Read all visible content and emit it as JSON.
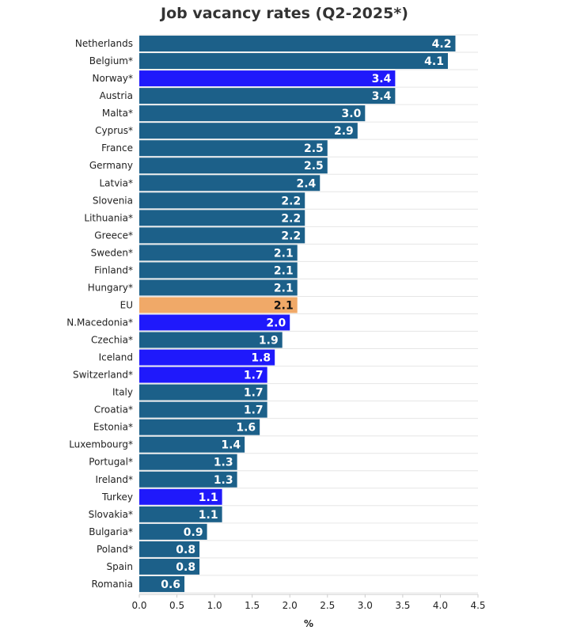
{
  "chart_data": {
    "type": "bar",
    "orientation": "horizontal",
    "title": "Job vacancy rates (Q2-2025*)",
    "xlabel": "%",
    "ylabel": "",
    "xlim": [
      0,
      4.5
    ],
    "x_ticks": [
      "0.0",
      "0.5",
      "1.0",
      "1.5",
      "2.0",
      "2.5",
      "3.0",
      "3.5",
      "4.0",
      "4.5"
    ],
    "grid": "horizontal light lines",
    "legend": "none",
    "data_labels": true,
    "colors": {
      "default": "#1c6089",
      "highlight_non_eu": "#1f19fb",
      "eu": "#f0a968",
      "label_light": "#ffffff",
      "label_dark": "#111111"
    },
    "categories": [
      "Netherlands",
      "Belgium*",
      "Norway*",
      "Austria",
      "Malta*",
      "Cyprus*",
      "France",
      "Germany",
      "Latvia*",
      "Slovenia",
      "Lithuania*",
      "Greece*",
      "Sweden*",
      "Finland*",
      "Hungary*",
      "EU",
      "N.Macedonia*",
      "Czechia*",
      "Iceland",
      "Switzerland*",
      "Italy",
      "Croatia*",
      "Estonia*",
      "Luxembourg*",
      "Portugal*",
      "Ireland*",
      "Turkey",
      "Slovakia*",
      "Bulgaria*",
      "Poland*",
      "Spain",
      "Romania"
    ],
    "values": [
      4.2,
      4.1,
      3.4,
      3.4,
      3.0,
      2.9,
      2.5,
      2.5,
      2.4,
      2.2,
      2.2,
      2.2,
      2.1,
      2.1,
      2.1,
      2.1,
      2.0,
      1.9,
      1.8,
      1.7,
      1.7,
      1.7,
      1.6,
      1.4,
      1.3,
      1.3,
      1.1,
      1.1,
      0.9,
      0.8,
      0.8,
      0.6
    ],
    "value_labels": [
      "4.2",
      "4.1",
      "3.4",
      "3.4",
      "3.0",
      "2.9",
      "2.5",
      "2.5",
      "2.4",
      "2.2",
      "2.2",
      "2.2",
      "2.1",
      "2.1",
      "2.1",
      "2.1",
      "2.0",
      "1.9",
      "1.8",
      "1.7",
      "1.7",
      "1.7",
      "1.6",
      "1.4",
      "1.3",
      "1.3",
      "1.1",
      "1.1",
      "0.9",
      "0.8",
      "0.8",
      "0.6"
    ],
    "bar_groups": [
      "default",
      "default",
      "highlight_non_eu",
      "default",
      "default",
      "default",
      "default",
      "default",
      "default",
      "default",
      "default",
      "default",
      "default",
      "default",
      "default",
      "eu",
      "highlight_non_eu",
      "default",
      "highlight_non_eu",
      "highlight_non_eu",
      "default",
      "default",
      "default",
      "default",
      "default",
      "default",
      "highlight_non_eu",
      "default",
      "default",
      "default",
      "default",
      "default"
    ]
  }
}
